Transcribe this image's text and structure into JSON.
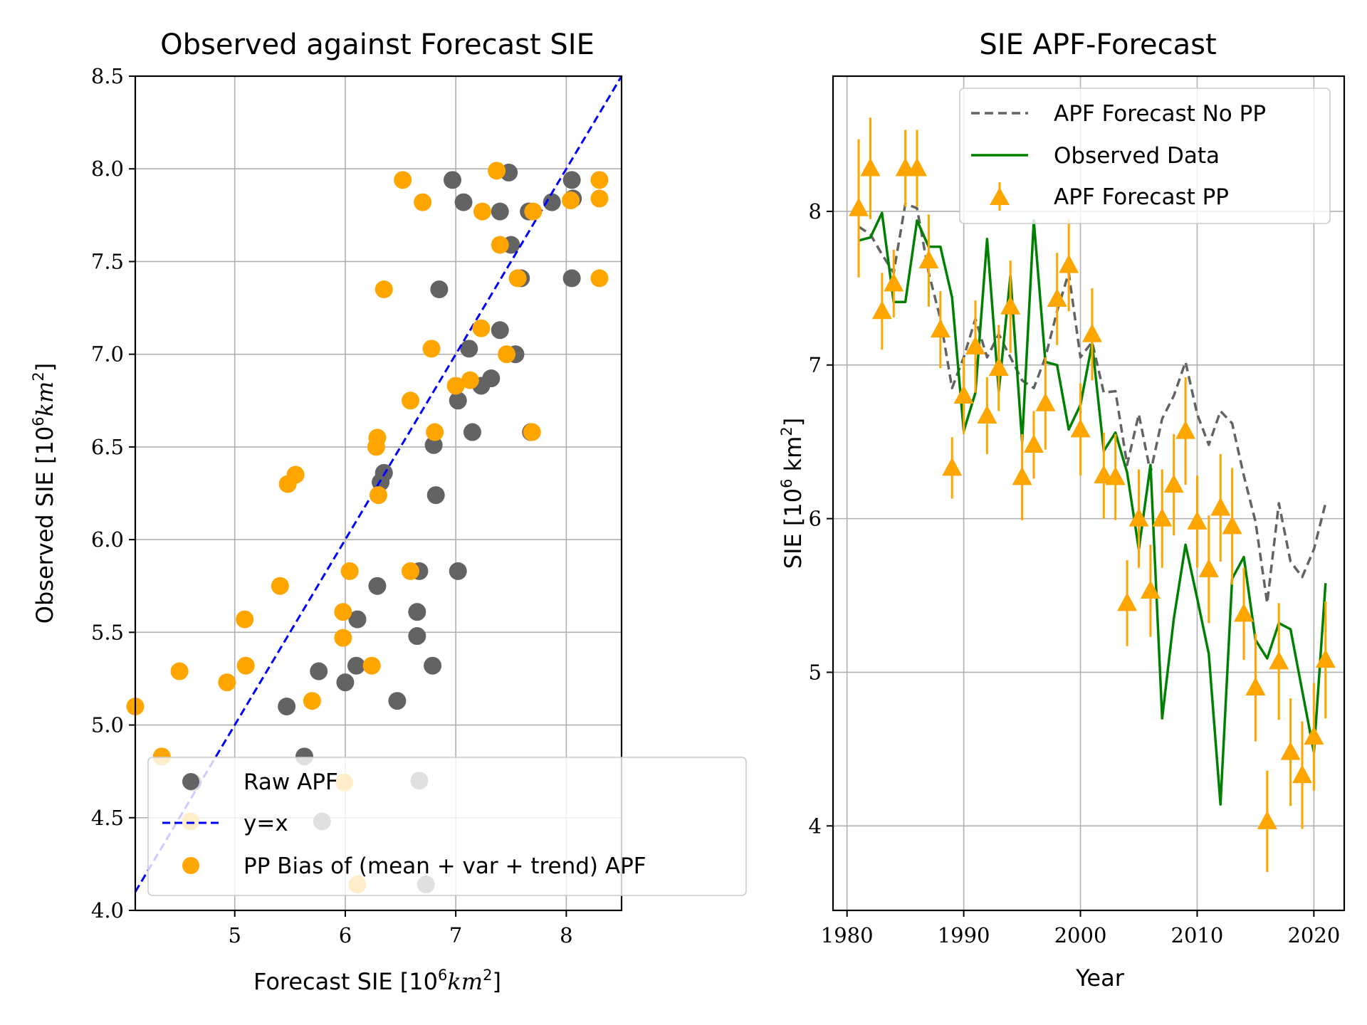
{
  "chart_data": [
    {
      "type": "scatter",
      "title": "Observed against Forecast SIE",
      "xlabel": "Forecast SIE [10",
      "xlabel_sup": "6",
      "xlabel_unit": "km",
      "xlabel_unit_sup": "2",
      "xlabel_end": "]",
      "ylabel": "Observed SIE [10",
      "ylabel_sup": "6",
      "ylabel_unit": "km",
      "ylabel_unit_sup": "2",
      "ylabel_end": "]",
      "xlim": [
        4.1,
        8.5
      ],
      "ylim": [
        4.0,
        8.5
      ],
      "xticks": [
        "5",
        "6",
        "7",
        "8"
      ],
      "yticks": [
        "4.0",
        "4.5",
        "5.0",
        "5.5",
        "6.0",
        "6.5",
        "7.0",
        "7.5",
        "8.0",
        "8.5"
      ],
      "grid": true,
      "legend_position": "lower-right",
      "series": [
        {
          "name": "Raw APF",
          "color": "#636363",
          "points": [
            [
              6.97,
              7.94
            ],
            [
              7.07,
              7.82
            ],
            [
              7.4,
              7.77
            ],
            [
              7.48,
              7.98
            ],
            [
              7.66,
              7.77
            ],
            [
              7.87,
              7.82
            ],
            [
              8.05,
              7.94
            ],
            [
              8.06,
              7.84
            ],
            [
              7.5,
              7.59
            ],
            [
              7.59,
              7.41
            ],
            [
              8.05,
              7.41
            ],
            [
              6.85,
              7.35
            ],
            [
              7.4,
              7.13
            ],
            [
              7.12,
              7.03
            ],
            [
              7.54,
              7.0
            ],
            [
              7.23,
              6.83
            ],
            [
              7.32,
              6.87
            ],
            [
              7.02,
              6.75
            ],
            [
              7.15,
              6.58
            ],
            [
              7.68,
              6.58
            ],
            [
              6.8,
              6.51
            ],
            [
              6.35,
              6.36
            ],
            [
              6.32,
              6.31
            ],
            [
              6.82,
              6.24
            ],
            [
              6.29,
              5.75
            ],
            [
              6.67,
              5.83
            ],
            [
              7.02,
              5.83
            ],
            [
              6.65,
              5.61
            ],
            [
              6.65,
              5.48
            ],
            [
              6.11,
              5.57
            ],
            [
              6.0,
              5.23
            ],
            [
              6.1,
              5.32
            ],
            [
              5.76,
              5.29
            ],
            [
              6.47,
              5.13
            ],
            [
              6.79,
              5.32
            ],
            [
              5.47,
              5.1
            ],
            [
              5.63,
              4.83
            ],
            [
              4.62,
              4.69
            ],
            [
              6.67,
              4.7
            ],
            [
              5.79,
              4.48
            ],
            [
              6.73,
              4.14
            ]
          ]
        },
        {
          "name": "y=x",
          "color": "#0000ff",
          "line": [
            [
              4.1,
              4.1
            ],
            [
              8.5,
              8.5
            ]
          ]
        },
        {
          "name": "PP Bias of (mean + var + trend) APF",
          "color": "#ffa500",
          "points": [
            [
              6.52,
              7.94
            ],
            [
              6.7,
              7.82
            ],
            [
              7.37,
              7.99
            ],
            [
              7.24,
              7.77
            ],
            [
              8.3,
              7.94
            ],
            [
              8.3,
              7.84
            ],
            [
              8.04,
              7.83
            ],
            [
              7.7,
              7.77
            ],
            [
              7.4,
              7.59
            ],
            [
              7.56,
              7.41
            ],
            [
              8.3,
              7.41
            ],
            [
              6.35,
              7.35
            ],
            [
              7.23,
              7.14
            ],
            [
              6.78,
              7.03
            ],
            [
              7.46,
              7.0
            ],
            [
              7.0,
              6.83
            ],
            [
              7.13,
              6.86
            ],
            [
              6.59,
              6.75
            ],
            [
              6.81,
              6.58
            ],
            [
              7.69,
              6.58
            ],
            [
              6.29,
              6.55
            ],
            [
              6.28,
              6.5
            ],
            [
              5.48,
              6.3
            ],
            [
              5.55,
              6.35
            ],
            [
              6.3,
              6.24
            ],
            [
              5.41,
              5.75
            ],
            [
              6.04,
              5.83
            ],
            [
              6.59,
              5.83
            ],
            [
              5.98,
              5.61
            ],
            [
              5.09,
              5.57
            ],
            [
              5.1,
              5.32
            ],
            [
              6.24,
              5.32
            ],
            [
              4.5,
              5.29
            ],
            [
              4.93,
              5.23
            ],
            [
              5.7,
              5.13
            ],
            [
              4.1,
              5.1
            ],
            [
              4.34,
              4.83
            ],
            [
              5.99,
              4.69
            ],
            [
              4.6,
              4.48
            ],
            [
              6.11,
              4.14
            ],
            [
              5.98,
              5.47
            ]
          ]
        }
      ]
    },
    {
      "type": "line",
      "title": "SIE APF-Forecast",
      "xlabel": "Year",
      "ylabel": "SIE [10",
      "ylabel_sup": "6",
      "ylabel_unit": " km",
      "ylabel_unit_sup": "2",
      "ylabel_end": "]",
      "xlim": [
        1978.8,
        2022.6
      ],
      "ylim": [
        3.45,
        8.88
      ],
      "xticks": [
        "1980",
        "1990",
        "2000",
        "2010",
        "2020"
      ],
      "yticks": [
        "4",
        "5",
        "6",
        "7",
        "8"
      ],
      "grid": true,
      "legend_position": "upper-right",
      "x": [
        1981,
        1982,
        1983,
        1984,
        1985,
        1986,
        1987,
        1988,
        1989,
        1990,
        1991,
        1992,
        1993,
        1994,
        1995,
        1996,
        1997,
        1998,
        1999,
        2000,
        2001,
        2002,
        2003,
        2004,
        2005,
        2006,
        2007,
        2008,
        2009,
        2010,
        2011,
        2012,
        2013,
        2014,
        2015,
        2016,
        2017,
        2018,
        2019,
        2020,
        2021
      ],
      "series": [
        {
          "name": "APF Forecast No PP",
          "color": "#636363",
          "style": "dashed",
          "values": [
            7.9,
            7.85,
            7.72,
            7.6,
            8.05,
            8.02,
            7.6,
            7.3,
            6.85,
            7.05,
            7.3,
            7.05,
            7.2,
            7.05,
            6.9,
            6.85,
            7.05,
            7.35,
            7.6,
            7.05,
            7.15,
            6.82,
            6.83,
            6.35,
            6.68,
            6.3,
            6.65,
            6.8,
            7.02,
            6.68,
            6.48,
            6.7,
            6.62,
            6.28,
            5.98,
            5.45,
            6.1,
            5.72,
            5.62,
            5.8,
            6.1
          ]
        },
        {
          "name": "Observed Data",
          "color": "#008000",
          "style": "solid",
          "values": [
            7.81,
            7.83,
            7.99,
            7.41,
            7.41,
            7.94,
            7.77,
            7.77,
            7.44,
            6.57,
            6.82,
            7.82,
            6.83,
            7.58,
            6.5,
            7.94,
            7.02,
            7.0,
            6.58,
            6.74,
            7.14,
            6.44,
            6.56,
            6.3,
            5.8,
            6.35,
            4.7,
            5.35,
            5.83,
            5.48,
            5.12,
            4.14,
            5.61,
            5.75,
            5.21,
            5.09,
            5.32,
            5.28,
            4.88,
            4.48,
            5.58
          ]
        },
        {
          "name": "APF Forecast PP",
          "color": "#ffa500",
          "style": "markers",
          "values": [
            8.02,
            8.28,
            7.35,
            7.53,
            8.28,
            8.28,
            7.68,
            7.23,
            6.33,
            6.8,
            7.12,
            6.67,
            6.98,
            7.38,
            6.27,
            6.48,
            6.75,
            7.43,
            7.65,
            6.58,
            7.2,
            6.28,
            6.27,
            5.45,
            6.0,
            5.53,
            6.0,
            6.22,
            6.57,
            5.98,
            5.67,
            6.07,
            5.95,
            5.38,
            4.9,
            4.03,
            5.07,
            4.48,
            4.33,
            4.58,
            5.08
          ],
          "errors": [
            0.45,
            0.33,
            0.25,
            0.22,
            0.25,
            0.25,
            0.3,
            0.25,
            0.2,
            0.25,
            0.3,
            0.25,
            0.28,
            0.3,
            0.28,
            0.22,
            0.3,
            0.3,
            0.3,
            0.3,
            0.3,
            0.28,
            0.28,
            0.28,
            0.32,
            0.3,
            0.32,
            0.33,
            0.35,
            0.3,
            0.35,
            0.35,
            0.38,
            0.3,
            0.35,
            0.33,
            0.38,
            0.35,
            0.35,
            0.35,
            0.38
          ]
        }
      ]
    }
  ]
}
